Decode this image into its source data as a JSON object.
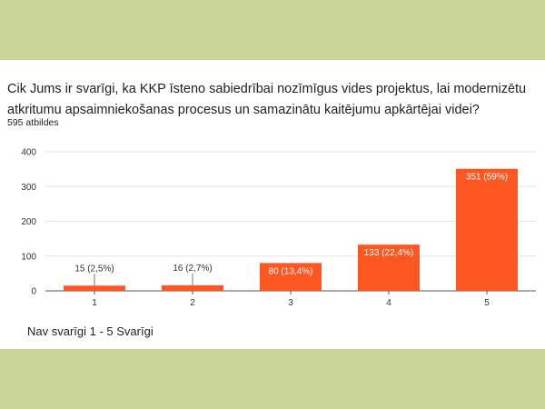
{
  "colors": {
    "background": "#c9d698",
    "card": "#ffffff",
    "bar": "#ff5722",
    "grid": "#e3e3e3",
    "label_dark": "#333333",
    "label_light": "#ffffff"
  },
  "question": "Cik Jums ir svarīgi, ka KKP īsteno sabiedrībai nozīmīgus vides projektus, lai modernizētu atkritumu apsaimniekošanas procesus un samazinātu kaitējumu apkārtējai videi?",
  "responses": "595 atbildes",
  "scale_note": "Nav svarīgi 1 - 5 Svarīgi",
  "chart_data": {
    "type": "bar",
    "title": "Cik Jums ir svarīgi, ka KKP īsteno sabiedrībai nozīmīgus vides projektus, lai modernizētu atkritumu apsaimniekošanas procesus un samazinātu kaitējumu apkārtējai videi?",
    "categories": [
      "1",
      "2",
      "3",
      "4",
      "5"
    ],
    "values": [
      15,
      16,
      80,
      133,
      351
    ],
    "data_labels": [
      "15 (2,5%)",
      "16 (2,7%)",
      "80 (13,4%)",
      "133 (22,4%)",
      "351 (59%)"
    ],
    "y_ticks": [
      "0",
      "100",
      "200",
      "300",
      "400"
    ],
    "ylim": [
      0,
      400
    ],
    "xlabel": "",
    "ylabel": "",
    "grid": true
  }
}
